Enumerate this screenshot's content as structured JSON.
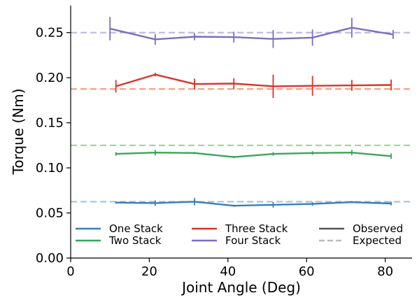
{
  "chart_data": {
    "type": "line",
    "xlabel": "Joint Angle (Deg)",
    "ylabel": "Torque (Nm)",
    "xlim": [
      0,
      85
    ],
    "ylim": [
      0,
      0.28
    ],
    "xticks": [
      0,
      20,
      40,
      60,
      80
    ],
    "yticks": [
      0.0,
      0.05,
      0.1,
      0.15,
      0.2,
      0.25
    ],
    "ytick_labels": [
      "0.00",
      "0.05",
      "0.10",
      "0.15",
      "0.20",
      "0.25"
    ],
    "grid": false,
    "legend_placement": "bottom",
    "series": [
      {
        "name": "One Stack",
        "color": "#3a7dbb",
        "expected_color": "#9fc4e2",
        "expected": 0.0625,
        "x": [
          11.5,
          21.5,
          31.5,
          41.5,
          51.5,
          61.5,
          71.5,
          81.5
        ],
        "y": [
          0.0615,
          0.061,
          0.0625,
          0.058,
          0.059,
          0.06,
          0.062,
          0.0605
        ],
        "err": [
          0.001,
          0.003,
          0.004,
          0.001,
          0.003,
          0.002,
          0.001,
          0.002
        ]
      },
      {
        "name": "Two Stack",
        "color": "#3aa55a",
        "expected_color": "#a3d79a",
        "expected": 0.125,
        "x": [
          11.5,
          21.5,
          31.5,
          41.5,
          51.5,
          61.5,
          71.5,
          81.5
        ],
        "y": [
          0.1155,
          0.117,
          0.1165,
          0.112,
          0.1155,
          0.1165,
          0.117,
          0.113
        ],
        "err": [
          0.002,
          0.003,
          0.001,
          0.001,
          0.002,
          0.002,
          0.003,
          0.003
        ]
      },
      {
        "name": "Three Stack",
        "color": "#d9342b",
        "expected_color": "#f4a184",
        "expected": 0.1875,
        "x": [
          11.5,
          21.5,
          31.5,
          41.5,
          51.5,
          61.5,
          71.5,
          81.5
        ],
        "y": [
          0.1905,
          0.2035,
          0.193,
          0.1935,
          0.1905,
          0.191,
          0.1915,
          0.192
        ],
        "err": [
          0.007,
          0.002,
          0.006,
          0.006,
          0.013,
          0.011,
          0.006,
          0.006
        ]
      },
      {
        "name": "Four Stack",
        "color": "#7b6fbd",
        "expected_color": "#c0b6dd",
        "expected": 0.25,
        "x": [
          10.0,
          21.5,
          31.5,
          41.5,
          51.5,
          61.5,
          71.5,
          82.0
        ],
        "y": [
          0.2545,
          0.2425,
          0.2455,
          0.245,
          0.243,
          0.2445,
          0.2555,
          0.248
        ],
        "err": [
          0.013,
          0.006,
          0.004,
          0.006,
          0.01,
          0.009,
          0.011,
          0.005
        ]
      }
    ],
    "legend_entries": [
      {
        "label": "One Stack",
        "color": "#3a7dbb",
        "style": "solid"
      },
      {
        "label": "Two Stack",
        "color": "#3aa55a",
        "style": "solid"
      },
      {
        "label": "Three Stack",
        "color": "#d9342b",
        "style": "solid"
      },
      {
        "label": "Four Stack",
        "color": "#7b6fbd",
        "style": "solid"
      },
      {
        "label": "Observed",
        "color": "#555555",
        "style": "solid"
      },
      {
        "label": "Expected",
        "color": "#bbbbbb",
        "style": "dashed"
      }
    ]
  }
}
